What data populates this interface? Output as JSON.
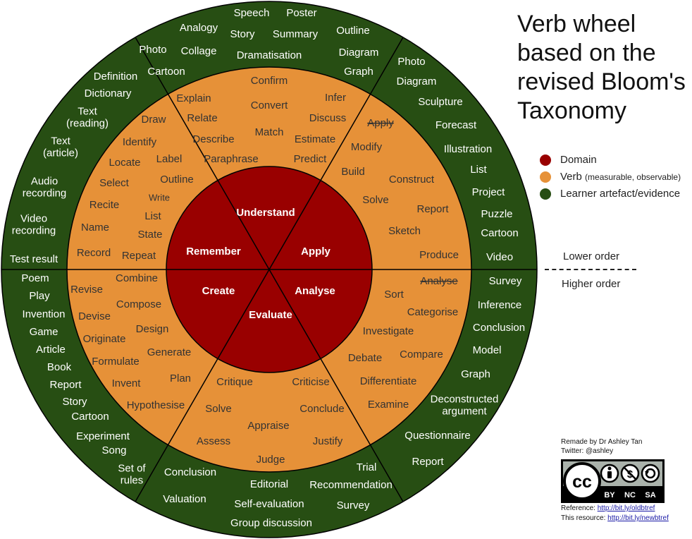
{
  "title": "Verb wheel based on the revised Bloom's Taxonomy",
  "colors": {
    "domain": "#990000",
    "verb": "#e69138",
    "artefact": "#274e13",
    "ink": "#000000"
  },
  "legend": [
    {
      "color": "#990000",
      "label": "Domain",
      "note": ""
    },
    {
      "color": "#e69138",
      "label": "Verb",
      "note": "(measurable, observable)"
    },
    {
      "color": "#274e13",
      "label": "Learner artefact/evidence",
      "note": ""
    }
  ],
  "order": {
    "lower": "Lower order",
    "higher": "Higher order"
  },
  "credits": {
    "author": "Remade by Dr Ashley Tan",
    "twitter": "Twitter: @ashley",
    "license_icons": [
      "cc-icon",
      "attribution-icon",
      "noncommercial-icon",
      "sharealike-icon"
    ],
    "license_terms": [
      "BY",
      "NC",
      "SA"
    ],
    "reference_label": "Reference: ",
    "reference_link": "http://bit.ly/oldbtref",
    "resource_label": "This resource: ",
    "resource_link": "http://bit.ly/newbtref"
  },
  "wheel": {
    "domains": [
      "Understand",
      "Apply",
      "Analyse",
      "Evaluate",
      "Create",
      "Remember"
    ],
    "verbs": [
      {
        "text": "Confirm"
      },
      {
        "text": "Explain"
      },
      {
        "text": "Infer"
      },
      {
        "text": "Convert"
      },
      {
        "text": "Relate"
      },
      {
        "text": "Discuss"
      },
      {
        "text": "Draw"
      },
      {
        "text": "Match"
      },
      {
        "text": "Describe"
      },
      {
        "text": "Estimate"
      },
      {
        "text": "Identify"
      },
      {
        "text": "Label"
      },
      {
        "text": "Paraphrase"
      },
      {
        "text": "Predict"
      },
      {
        "text": "Locate"
      },
      {
        "text": "Outline"
      },
      {
        "text": "Select"
      },
      {
        "text": "Write"
      },
      {
        "text": "Recite"
      },
      {
        "text": "List"
      },
      {
        "text": "Name"
      },
      {
        "text": "State"
      },
      {
        "text": "Record"
      },
      {
        "text": "Repeat"
      },
      {
        "text": "Apply",
        "struck": true
      },
      {
        "text": "Modify"
      },
      {
        "text": "Build"
      },
      {
        "text": "Construct"
      },
      {
        "text": "Solve"
      },
      {
        "text": "Report"
      },
      {
        "text": "Sketch"
      },
      {
        "text": "Produce"
      },
      {
        "text": "Analyse",
        "struck": true
      },
      {
        "text": "Sort"
      },
      {
        "text": "Categorise"
      },
      {
        "text": "Investigate"
      },
      {
        "text": "Compare"
      },
      {
        "text": "Debate"
      },
      {
        "text": "Differentiate"
      },
      {
        "text": "Examine"
      },
      {
        "text": "Critique"
      },
      {
        "text": "Criticise"
      },
      {
        "text": "Solve"
      },
      {
        "text": "Conclude"
      },
      {
        "text": "Appraise"
      },
      {
        "text": "Assess"
      },
      {
        "text": "Justify"
      },
      {
        "text": "Judge"
      },
      {
        "text": "Combine"
      },
      {
        "text": "Revise"
      },
      {
        "text": "Compose"
      },
      {
        "text": "Devise"
      },
      {
        "text": "Design"
      },
      {
        "text": "Originate"
      },
      {
        "text": "Generate"
      },
      {
        "text": "Formulate"
      },
      {
        "text": "Plan"
      },
      {
        "text": "Invent"
      },
      {
        "text": "Hypothesise"
      }
    ],
    "artefacts": [
      "Speech",
      "Poster",
      "Analogy",
      "Story",
      "Summary",
      "Outline",
      "Photo",
      "Collage",
      "Dramatisation",
      "Diagram",
      "Cartoon",
      "Graph",
      "Definition",
      "Dictionary",
      "Text\n(reading)",
      "Text\n(article)",
      "Audio\nrecording",
      "Video\nrecording",
      "Test result",
      "Photo",
      "Diagram",
      "Sculpture",
      "Forecast",
      "Illustration",
      "List",
      "Project",
      "Puzzle",
      "Cartoon",
      "Video",
      "Survey",
      "Inference",
      "Conclusion",
      "Model",
      "Graph",
      "Deconstructed\nargument",
      "Questionnaire",
      "Report",
      "Trial",
      "Conclusion",
      "Editorial",
      "Recommendation",
      "Valuation",
      "Self-evaluation",
      "Survey",
      "Group discussion",
      "Poem",
      "Play",
      "Invention",
      "Game",
      "Article",
      "Book",
      "Report",
      "Story",
      "Cartoon",
      "Experiment",
      "Song",
      "Set of\nrules"
    ]
  }
}
